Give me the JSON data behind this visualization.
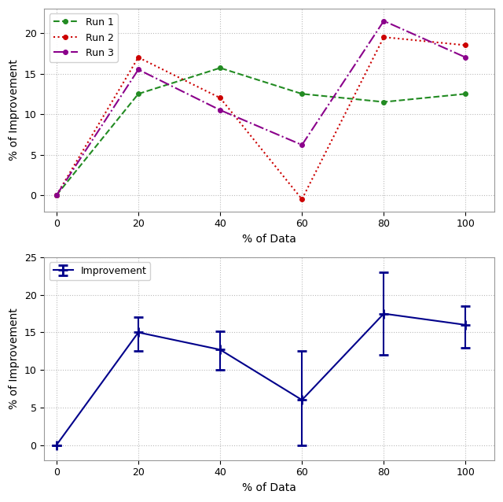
{
  "x": [
    0,
    20,
    40,
    60,
    80,
    100
  ],
  "run1": [
    0,
    12.5,
    15.7,
    12.5,
    11.5,
    12.5
  ],
  "run2": [
    0,
    17.0,
    12.0,
    -0.5,
    19.5,
    18.5
  ],
  "run3": [
    0,
    15.5,
    10.5,
    6.2,
    21.5,
    17.0
  ],
  "mean": [
    0,
    15.0,
    12.7,
    6.0,
    17.5,
    16.0
  ],
  "yerr_lower": [
    0,
    2.5,
    2.7,
    6.0,
    5.5,
    3.0
  ],
  "yerr_upper": [
    0,
    2.0,
    2.5,
    6.5,
    5.5,
    2.5
  ],
  "run1_color": "#228B22",
  "run2_color": "#CC0000",
  "run3_color": "#8B008B",
  "mean_color": "#00008B",
  "xlabel": "% of Data",
  "ylabel": "% of Improvement",
  "run1_label": "Run 1",
  "run2_label": "Run 2",
  "run3_label": "Run 3",
  "mean_label": "Improvement",
  "background_color": "#ffffff",
  "grid_color": "#bbbbbb"
}
